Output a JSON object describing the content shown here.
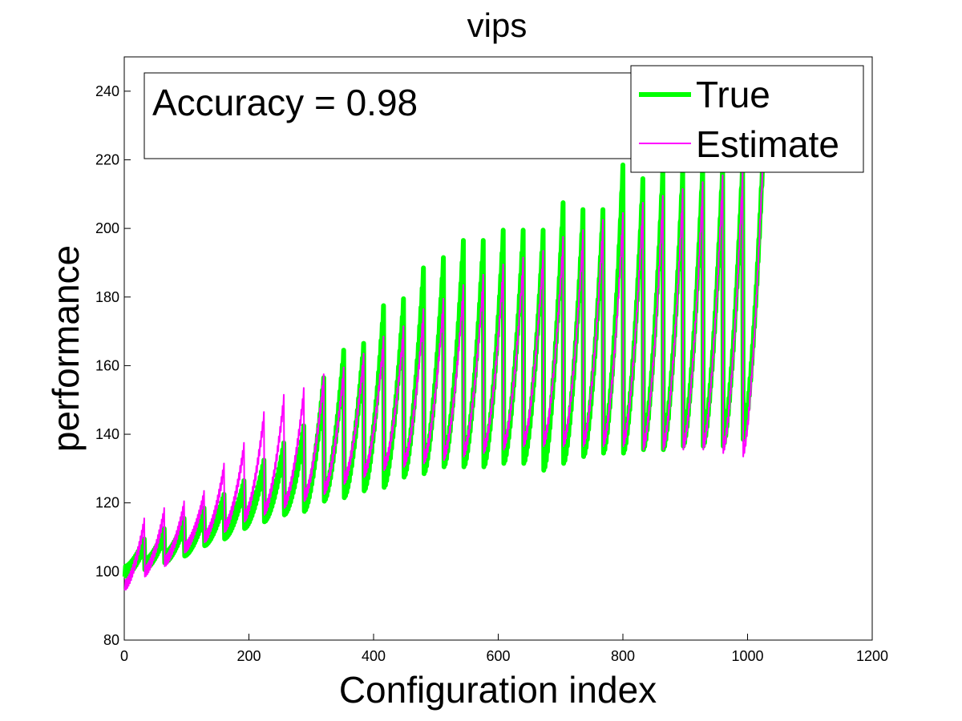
{
  "chart_data": {
    "type": "line",
    "title": "vips",
    "xlabel": "Configuration index",
    "ylabel": "performance",
    "xlim": [
      0,
      1200
    ],
    "ylim": [
      80,
      250
    ],
    "x_ticks": [
      "0",
      "200",
      "400",
      "600",
      "800",
      "1000",
      "1200"
    ],
    "y_ticks": [
      "80",
      "100",
      "120",
      "140",
      "160",
      "180",
      "200",
      "220",
      "240"
    ],
    "grid": false,
    "legend_position": "top-right",
    "annotation": "Accuracy = 0.98",
    "series": [
      {
        "name": "True",
        "color": "#00ff00",
        "blocks": [
          {
            "start": 1,
            "low": 100,
            "high": 108
          },
          {
            "start": 33,
            "low": 102,
            "high": 111
          },
          {
            "start": 65,
            "low": 104,
            "high": 114
          },
          {
            "start": 97,
            "low": 106,
            "high": 117
          },
          {
            "start": 129,
            "low": 109,
            "high": 121
          },
          {
            "start": 161,
            "low": 111,
            "high": 125
          },
          {
            "start": 193,
            "low": 114,
            "high": 131
          },
          {
            "start": 225,
            "low": 116,
            "high": 136
          },
          {
            "start": 257,
            "low": 118,
            "high": 141
          },
          {
            "start": 289,
            "low": 119,
            "high": 155
          },
          {
            "start": 321,
            "low": 122,
            "high": 163
          },
          {
            "start": 353,
            "low": 123,
            "high": 165
          },
          {
            "start": 385,
            "low": 125,
            "high": 176
          },
          {
            "start": 417,
            "low": 126,
            "high": 178
          },
          {
            "start": 449,
            "low": 129,
            "high": 187
          },
          {
            "start": 481,
            "low": 130,
            "high": 190
          },
          {
            "start": 513,
            "low": 132,
            "high": 195
          },
          {
            "start": 545,
            "low": 132,
            "high": 195
          },
          {
            "start": 577,
            "low": 132,
            "high": 198
          },
          {
            "start": 609,
            "low": 133,
            "high": 198
          },
          {
            "start": 641,
            "low": 133,
            "high": 198
          },
          {
            "start": 673,
            "low": 131,
            "high": 206
          },
          {
            "start": 705,
            "low": 133,
            "high": 204
          },
          {
            "start": 737,
            "low": 135,
            "high": 204
          },
          {
            "start": 769,
            "low": 136,
            "high": 217
          },
          {
            "start": 801,
            "low": 136,
            "high": 213
          },
          {
            "start": 833,
            "low": 137,
            "high": 216
          },
          {
            "start": 865,
            "low": 137,
            "high": 216
          },
          {
            "start": 897,
            "low": 138,
            "high": 217
          },
          {
            "start": 929,
            "low": 138,
            "high": 217
          },
          {
            "start": 961,
            "low": 138,
            "high": 218
          },
          {
            "start": 993,
            "low": 140,
            "high": 218
          }
        ]
      },
      {
        "name": "Estimate",
        "color": "#ff00ff",
        "blocks": [
          {
            "start": 1,
            "low": 96,
            "high": 114
          },
          {
            "start": 33,
            "low": 100,
            "high": 117
          },
          {
            "start": 65,
            "low": 103,
            "high": 119
          },
          {
            "start": 97,
            "low": 107,
            "high": 122
          },
          {
            "start": 129,
            "low": 110,
            "high": 130
          },
          {
            "start": 161,
            "low": 113,
            "high": 136
          },
          {
            "start": 193,
            "low": 116,
            "high": 145
          },
          {
            "start": 225,
            "low": 118,
            "high": 150
          },
          {
            "start": 257,
            "low": 120,
            "high": 152
          },
          {
            "start": 289,
            "low": 122,
            "high": 156
          },
          {
            "start": 321,
            "low": 124,
            "high": 158
          },
          {
            "start": 353,
            "low": 127,
            "high": 162
          },
          {
            "start": 385,
            "low": 129,
            "high": 167
          },
          {
            "start": 417,
            "low": 131,
            "high": 170
          },
          {
            "start": 449,
            "low": 132,
            "high": 175
          },
          {
            "start": 481,
            "low": 133,
            "high": 178
          },
          {
            "start": 513,
            "low": 134,
            "high": 182
          },
          {
            "start": 545,
            "low": 135,
            "high": 185
          },
          {
            "start": 577,
            "low": 136,
            "high": 188
          },
          {
            "start": 609,
            "low": 137,
            "high": 190
          },
          {
            "start": 641,
            "low": 138,
            "high": 192
          },
          {
            "start": 673,
            "low": 138,
            "high": 196
          },
          {
            "start": 705,
            "low": 138,
            "high": 198
          },
          {
            "start": 737,
            "low": 138,
            "high": 201
          },
          {
            "start": 769,
            "low": 138,
            "high": 203
          },
          {
            "start": 801,
            "low": 138,
            "high": 206
          },
          {
            "start": 833,
            "low": 137,
            "high": 208
          },
          {
            "start": 865,
            "low": 137,
            "high": 210
          },
          {
            "start": 897,
            "low": 137,
            "high": 212
          },
          {
            "start": 929,
            "low": 137,
            "high": 214
          },
          {
            "start": 961,
            "low": 136,
            "high": 215
          },
          {
            "start": 993,
            "low": 135,
            "high": 217
          }
        ]
      }
    ]
  }
}
